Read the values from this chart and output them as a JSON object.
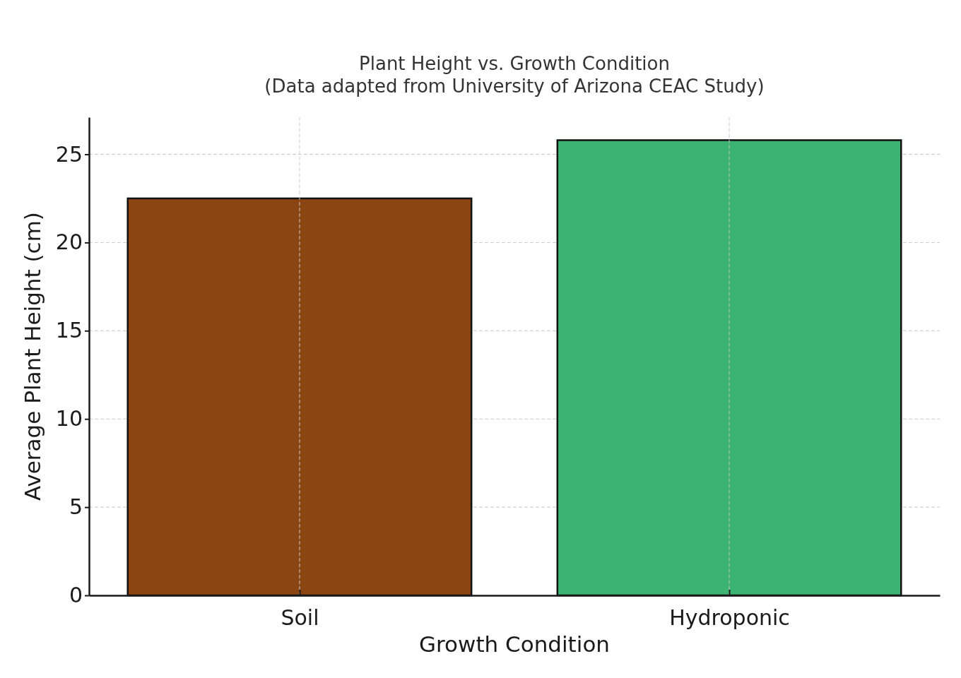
{
  "chart_data": {
    "type": "bar",
    "title": "Plant Height vs. Growth Condition",
    "subtitle": "(Data adapted from University of Arizona CEAC Study)",
    "xlabel": "Growth Condition",
    "ylabel": "Average Plant Height (cm)",
    "categories": [
      "Soil",
      "Hydroponic"
    ],
    "values": [
      22.5,
      25.8
    ],
    "colors": [
      "#8b4513",
      "#3cb371"
    ],
    "ylim": [
      0,
      27.1
    ],
    "yticks": [
      0,
      5,
      10,
      15,
      20,
      25
    ],
    "grid": true,
    "legend": false
  }
}
